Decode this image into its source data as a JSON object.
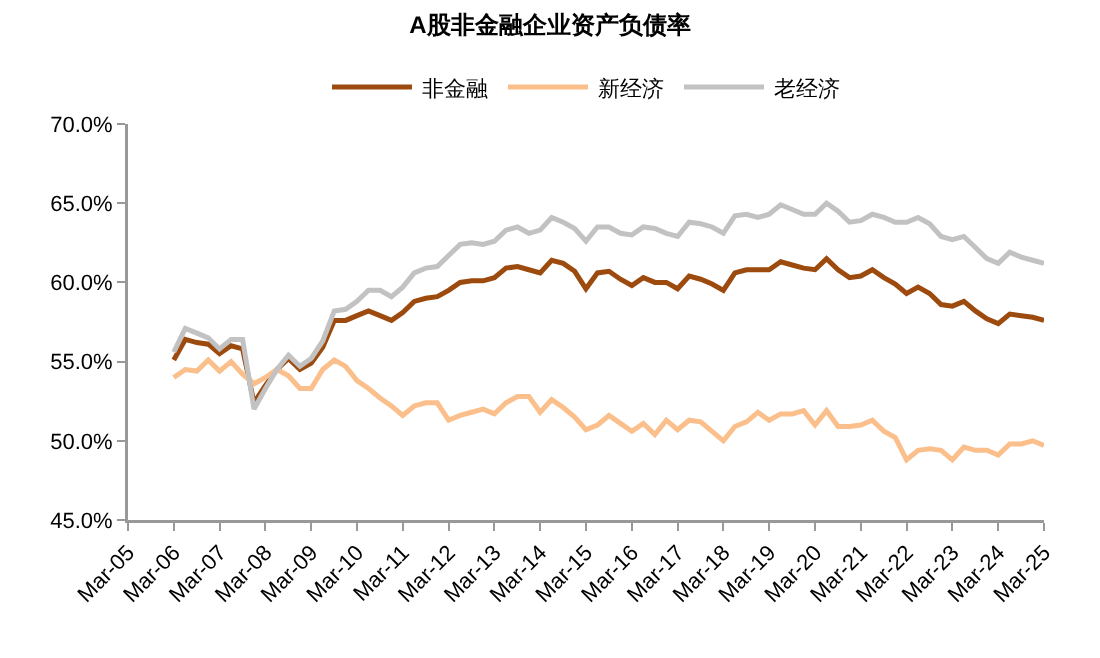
{
  "chart_data": {
    "type": "line",
    "title": "A股非金融企业资产负债率",
    "legend": "top",
    "grid": false,
    "marker": "none",
    "line_style": "solid",
    "x": [
      "2006-03",
      "2006-06",
      "2006-09",
      "2006-12",
      "2007-03",
      "2007-06",
      "2007-09",
      "2007-12",
      "2008-03",
      "2008-06",
      "2008-09",
      "2008-12",
      "2009-03",
      "2009-06",
      "2009-09",
      "2009-12",
      "2010-03",
      "2010-06",
      "2010-09",
      "2010-12",
      "2011-03",
      "2011-06",
      "2011-09",
      "2011-12",
      "2012-03",
      "2012-06",
      "2012-09",
      "2012-12",
      "2013-03",
      "2013-06",
      "2013-09",
      "2013-12",
      "2014-03",
      "2014-06",
      "2014-09",
      "2014-12",
      "2015-03",
      "2015-06",
      "2015-09",
      "2015-12",
      "2016-03",
      "2016-06",
      "2016-09",
      "2016-12",
      "2017-03",
      "2017-06",
      "2017-09",
      "2017-12",
      "2018-03",
      "2018-06",
      "2018-09",
      "2018-12",
      "2019-03",
      "2019-06",
      "2019-09",
      "2019-12",
      "2020-03",
      "2020-06",
      "2020-09",
      "2020-12",
      "2021-03",
      "2021-06",
      "2021-09",
      "2021-12",
      "2022-03",
      "2022-06",
      "2022-09",
      "2022-12",
      "2023-03",
      "2023-06",
      "2023-09",
      "2023-12",
      "2024-03",
      "2024-06",
      "2024-09",
      "2024-12",
      "2025-03"
    ],
    "series": [
      {
        "name": "非金融",
        "color": "#9c4a0e",
        "values": [
          55.1,
          56.4,
          56.2,
          56.1,
          55.5,
          56.0,
          55.8,
          52.4,
          53.5,
          54.5,
          55.2,
          54.5,
          54.9,
          55.9,
          57.6,
          57.6,
          57.9,
          58.2,
          57.9,
          57.6,
          58.1,
          58.8,
          59.0,
          59.1,
          59.5,
          60.0,
          60.1,
          60.1,
          60.3,
          60.9,
          61.0,
          60.8,
          60.6,
          61.4,
          61.2,
          60.7,
          59.6,
          60.6,
          60.7,
          60.2,
          59.8,
          60.3,
          60.0,
          60.0,
          59.6,
          60.4,
          60.2,
          59.9,
          59.5,
          60.6,
          60.8,
          60.8,
          60.8,
          61.3,
          61.1,
          60.9,
          60.8,
          61.5,
          60.8,
          60.3,
          60.4,
          60.8,
          60.3,
          59.9,
          59.3,
          59.7,
          59.3,
          58.6,
          58.5,
          58.8,
          58.2,
          57.7,
          57.4,
          58.0,
          57.9,
          57.8,
          57.6
        ]
      },
      {
        "name": "新经济",
        "color": "#fbbf8c",
        "values": [
          54.0,
          54.5,
          54.4,
          55.1,
          54.4,
          55.0,
          54.2,
          53.6,
          54.0,
          54.5,
          54.1,
          53.3,
          53.3,
          54.5,
          55.1,
          54.7,
          53.8,
          53.3,
          52.7,
          52.2,
          51.6,
          52.2,
          52.4,
          52.4,
          51.3,
          51.6,
          51.8,
          52.0,
          51.7,
          52.4,
          52.8,
          52.8,
          51.8,
          52.6,
          52.1,
          51.5,
          50.7,
          51.0,
          51.6,
          51.1,
          50.6,
          51.1,
          50.4,
          51.3,
          50.7,
          51.3,
          51.2,
          50.6,
          50.0,
          50.9,
          51.2,
          51.8,
          51.3,
          51.7,
          51.7,
          51.9,
          51.0,
          51.9,
          50.9,
          50.9,
          51.0,
          51.3,
          50.6,
          50.2,
          48.8,
          49.4,
          49.5,
          49.4,
          48.8,
          49.6,
          49.4,
          49.4,
          49.1,
          49.8,
          49.8,
          50.0,
          49.7
        ]
      },
      {
        "name": "老经济",
        "color": "#c2c2c2",
        "values": [
          55.6,
          57.1,
          56.8,
          56.5,
          55.8,
          56.4,
          56.4,
          52.0,
          53.3,
          54.5,
          55.4,
          54.7,
          55.2,
          56.3,
          58.2,
          58.3,
          58.8,
          59.5,
          59.5,
          59.1,
          59.7,
          60.6,
          60.9,
          61.0,
          61.7,
          62.4,
          62.5,
          62.4,
          62.6,
          63.3,
          63.5,
          63.1,
          63.3,
          64.1,
          63.8,
          63.4,
          62.6,
          63.5,
          63.5,
          63.1,
          63.0,
          63.5,
          63.4,
          63.1,
          62.9,
          63.8,
          63.7,
          63.5,
          63.1,
          64.2,
          64.3,
          64.1,
          64.3,
          64.9,
          64.6,
          64.3,
          64.3,
          65.0,
          64.5,
          63.8,
          63.9,
          64.3,
          64.1,
          63.8,
          63.8,
          64.1,
          63.7,
          62.9,
          62.7,
          62.9,
          62.2,
          61.5,
          61.2,
          61.9,
          61.6,
          61.4,
          61.2
        ]
      }
    ],
    "xlim": [
      "2005-03",
      "2025-03"
    ],
    "xticks": [
      {
        "value": "2005-03",
        "label": "Mar-05"
      },
      {
        "value": "2006-03",
        "label": "Mar-06"
      },
      {
        "value": "2007-03",
        "label": "Mar-07"
      },
      {
        "value": "2008-03",
        "label": "Mar-08"
      },
      {
        "value": "2009-03",
        "label": "Mar-09"
      },
      {
        "value": "2010-03",
        "label": "Mar-10"
      },
      {
        "value": "2011-03",
        "label": "Mar-11"
      },
      {
        "value": "2012-03",
        "label": "Mar-12"
      },
      {
        "value": "2013-03",
        "label": "Mar-13"
      },
      {
        "value": "2014-03",
        "label": "Mar-14"
      },
      {
        "value": "2015-03",
        "label": "Mar-15"
      },
      {
        "value": "2016-03",
        "label": "Mar-16"
      },
      {
        "value": "2017-03",
        "label": "Mar-17"
      },
      {
        "value": "2018-03",
        "label": "Mar-18"
      },
      {
        "value": "2019-03",
        "label": "Mar-19"
      },
      {
        "value": "2020-03",
        "label": "Mar-20"
      },
      {
        "value": "2021-03",
        "label": "Mar-21"
      },
      {
        "value": "2022-03",
        "label": "Mar-22"
      },
      {
        "value": "2023-03",
        "label": "Mar-23"
      },
      {
        "value": "2024-03",
        "label": "Mar-24"
      },
      {
        "value": "2025-03",
        "label": "Mar-25"
      }
    ],
    "ylim": [
      45,
      70
    ],
    "yticks": [
      {
        "value": 45,
        "label": "45.0%"
      },
      {
        "value": 50,
        "label": "50.0%"
      },
      {
        "value": 55,
        "label": "55.0%"
      },
      {
        "value": 60,
        "label": "60.0%"
      },
      {
        "value": 65,
        "label": "65.0%"
      },
      {
        "value": 70,
        "label": "70.0%"
      }
    ]
  }
}
